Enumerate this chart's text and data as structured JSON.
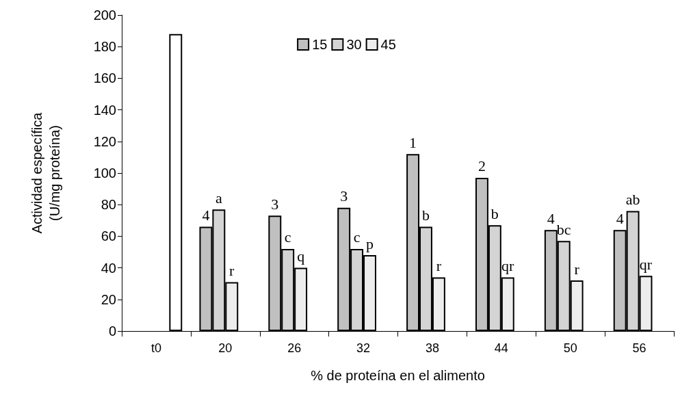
{
  "chart_data": {
    "type": "bar",
    "xlabel": "% de proteína en el alimento",
    "ylabel": "Actividad específica\n(U/mg proteína)",
    "categories": [
      "t0",
      "20",
      "26",
      "32",
      "38",
      "44",
      "50",
      "56"
    ],
    "series": [
      {
        "name": "15",
        "color": "#c0c0c0",
        "values": [
          null,
          66,
          73,
          78,
          112,
          97,
          64,
          64
        ]
      },
      {
        "name": "30",
        "color": "#d4d4d4",
        "values": [
          null,
          77,
          52,
          52,
          66,
          67,
          57,
          76
        ]
      },
      {
        "name": "45",
        "color": "#ededed",
        "values": [
          null,
          31,
          40,
          48,
          34,
          34,
          32,
          35
        ]
      },
      {
        "color": "#ffffff",
        "values": [
          188,
          null,
          null,
          null,
          null,
          null,
          null,
          null
        ]
      }
    ],
    "ylim": [
      0,
      200
    ],
    "yticks": [
      0,
      20,
      40,
      60,
      80,
      100,
      120,
      140,
      160,
      180,
      200
    ],
    "grid": false,
    "legend": "top",
    "annotations": [
      "4",
      "a",
      "r",
      "3",
      "c",
      "q",
      "3",
      "c",
      "p",
      "1",
      "b",
      "r",
      "2",
      "b",
      "qr",
      "4",
      "bc",
      "r",
      "4",
      "ab",
      "qr"
    ]
  }
}
